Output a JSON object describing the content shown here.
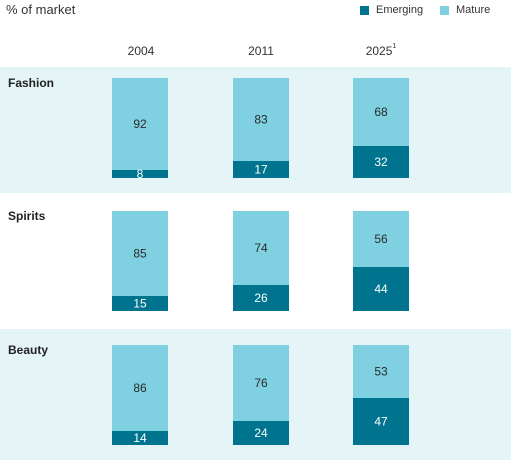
{
  "chart_data": {
    "type": "bar",
    "stacked": true,
    "unit": "% of market",
    "categories": [
      "2004",
      "2011",
      "2025"
    ],
    "category_footnotes": [
      "",
      "",
      "1"
    ],
    "series_names": [
      "Emerging",
      "Mature"
    ],
    "colors": {
      "Emerging": "#00748f",
      "Mature": "#7fd0e1",
      "band": "#e5f4f7"
    },
    "panels": [
      {
        "title": "Fashion",
        "series": [
          {
            "name": "Emerging",
            "values": [
              8,
              17,
              32
            ]
          },
          {
            "name": "Mature",
            "values": [
              92,
              83,
              68
            ]
          }
        ]
      },
      {
        "title": "Spirits",
        "series": [
          {
            "name": "Emerging",
            "values": [
              15,
              26,
              44
            ]
          },
          {
            "name": "Mature",
            "values": [
              85,
              74,
              56
            ]
          }
        ]
      },
      {
        "title": "Beauty",
        "series": [
          {
            "name": "Emerging",
            "values": [
              14,
              24,
              47
            ]
          },
          {
            "name": "Mature",
            "values": [
              86,
              76,
              53
            ]
          }
        ]
      }
    ],
    "ylim": [
      0,
      100
    ],
    "legend_position": "top-right"
  }
}
